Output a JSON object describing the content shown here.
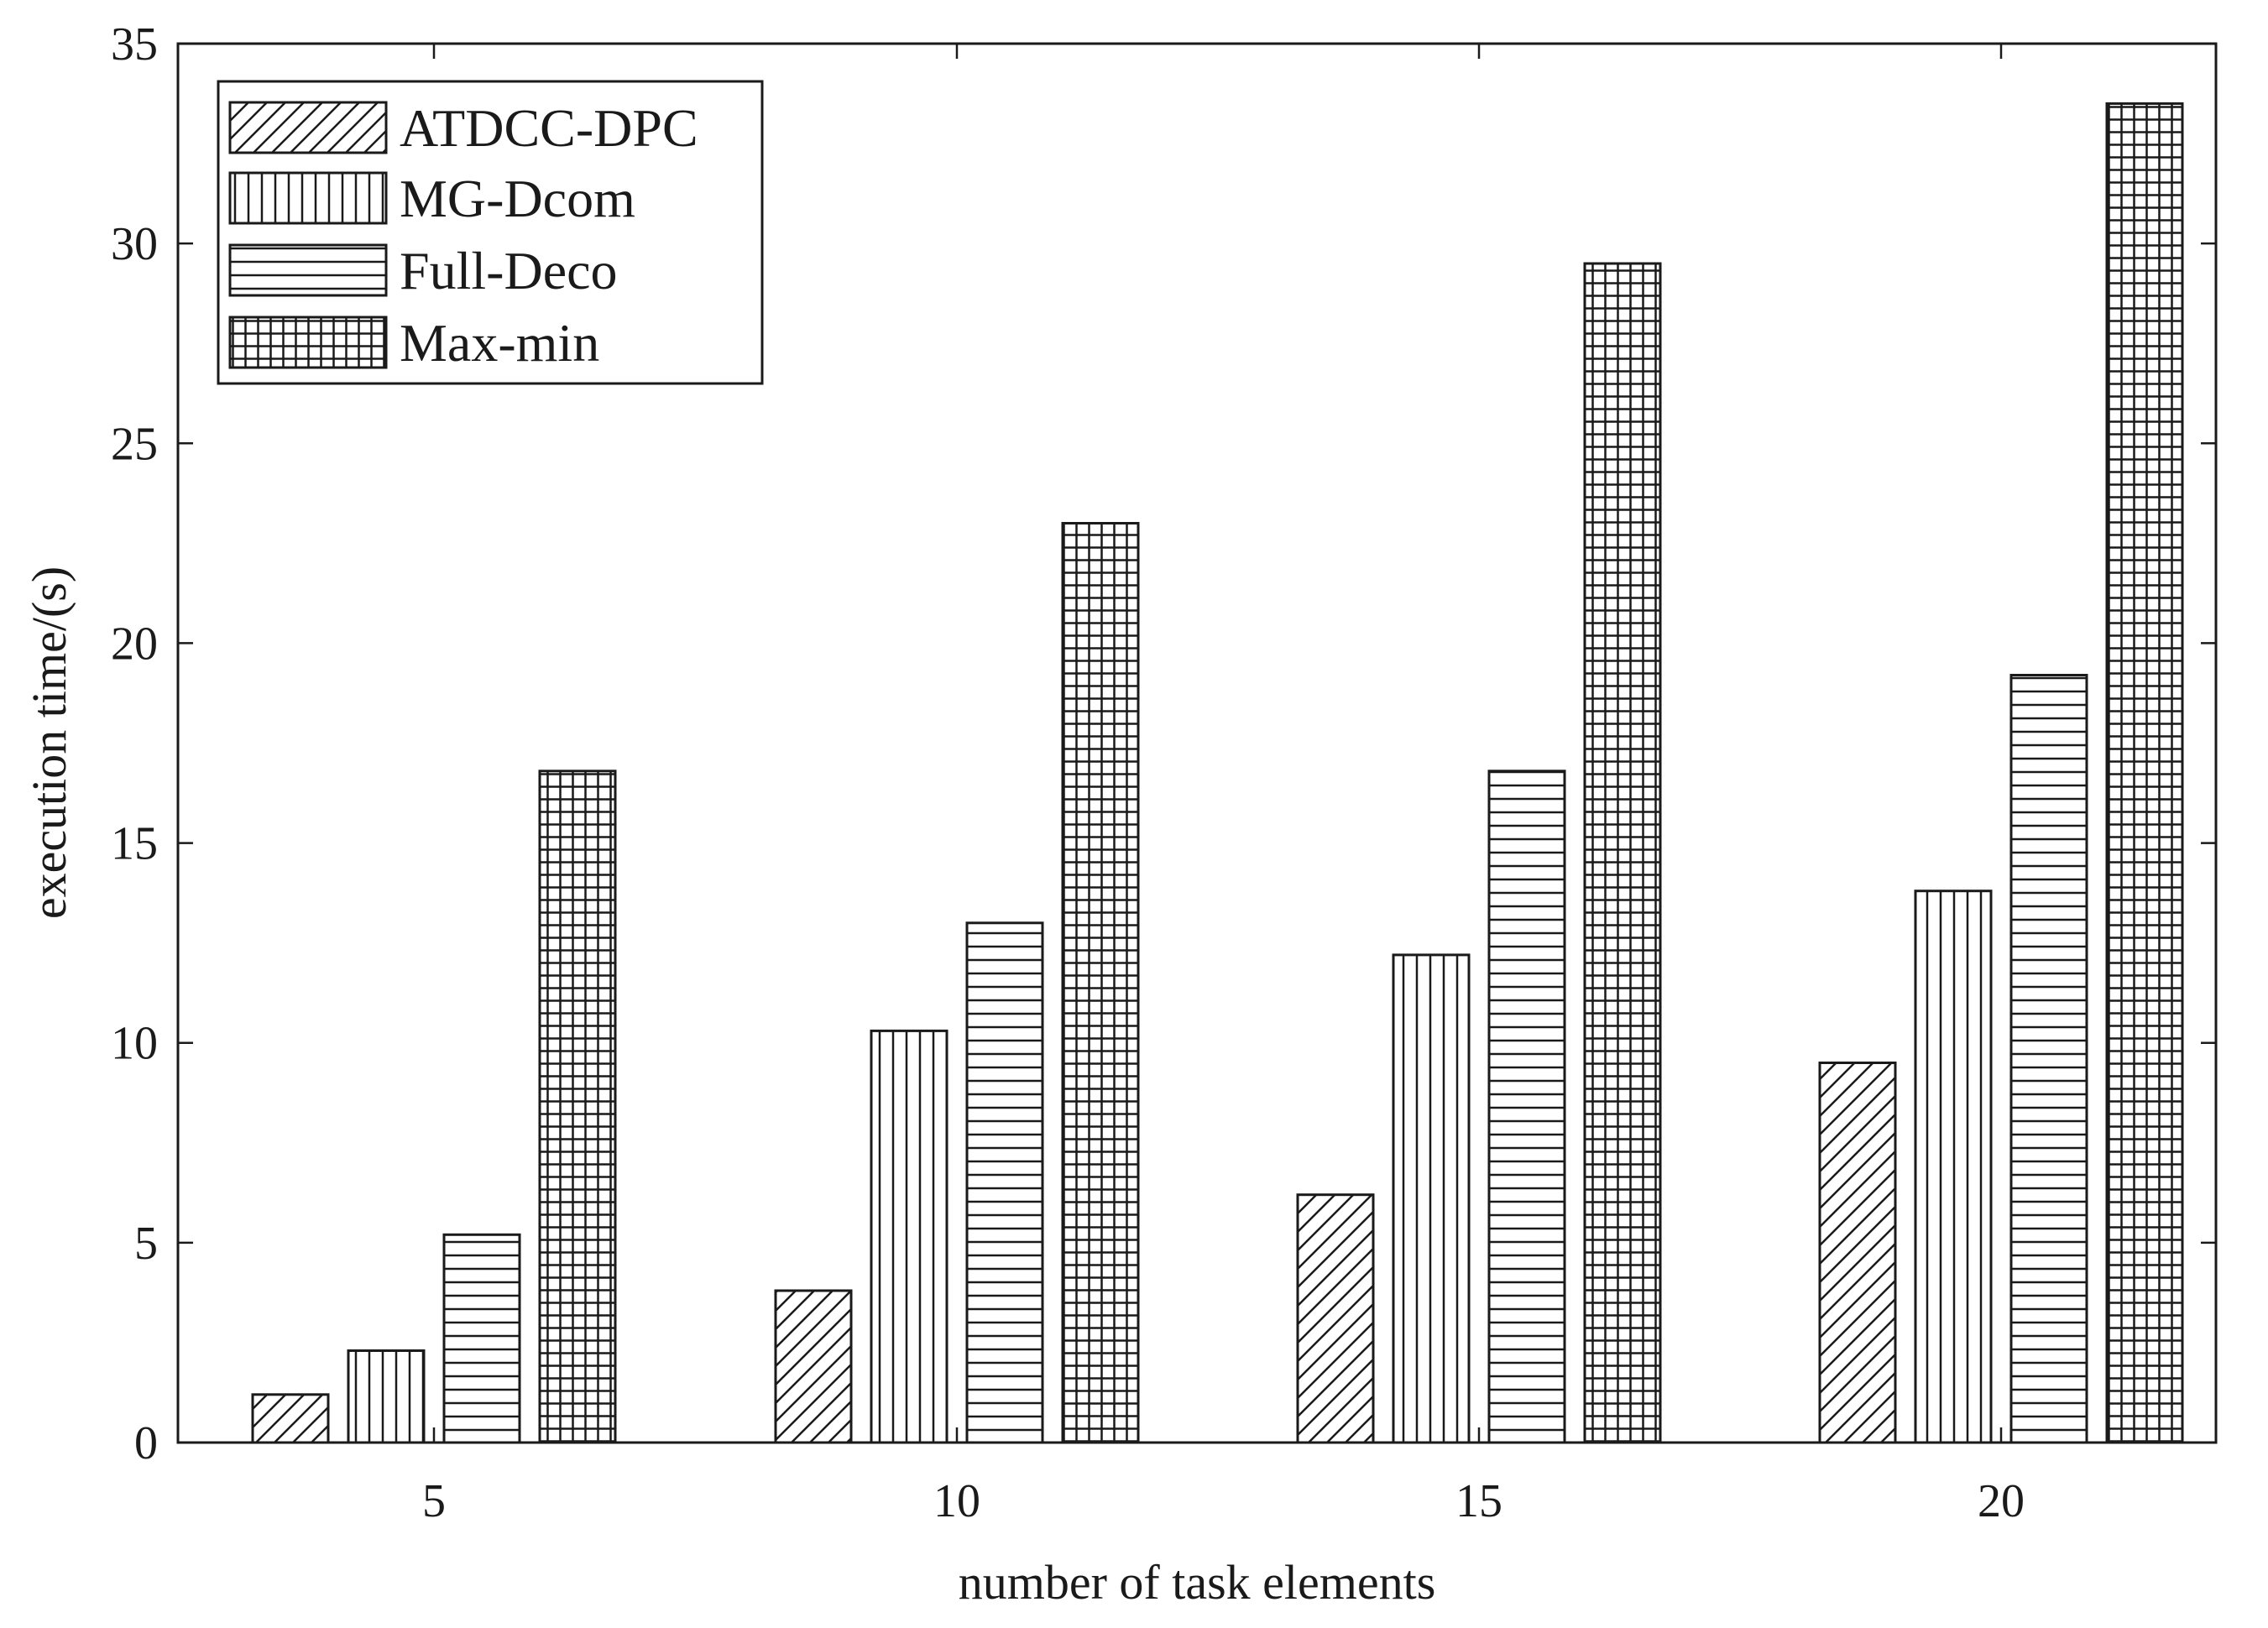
{
  "chart_data": {
    "type": "bar",
    "title": "",
    "xlabel": "number of task elements",
    "ylabel": "execution time/(s)",
    "categories": [
      "5",
      "10",
      "15",
      "20"
    ],
    "ylim": [
      0,
      35
    ],
    "yticks": [
      "0",
      "5",
      "10",
      "15",
      "20",
      "25",
      "30",
      "35"
    ],
    "grid": false,
    "legend_position": "top-left",
    "series": [
      {
        "name": "ATDCC-DPC",
        "pattern": "diagonal",
        "values": [
          1.2,
          3.8,
          6.2,
          9.5
        ]
      },
      {
        "name": "MG-Dcom",
        "pattern": "vertical",
        "values": [
          2.3,
          10.3,
          12.2,
          13.8
        ]
      },
      {
        "name": "Full-Deco",
        "pattern": "horizontal",
        "values": [
          5.2,
          13.0,
          16.8,
          19.2
        ]
      },
      {
        "name": "Max-min",
        "pattern": "grid",
        "values": [
          16.8,
          23.0,
          29.5,
          33.5
        ]
      }
    ],
    "colors": {
      "stroke": "#1a1a1a",
      "fill": "#ffffff"
    }
  }
}
